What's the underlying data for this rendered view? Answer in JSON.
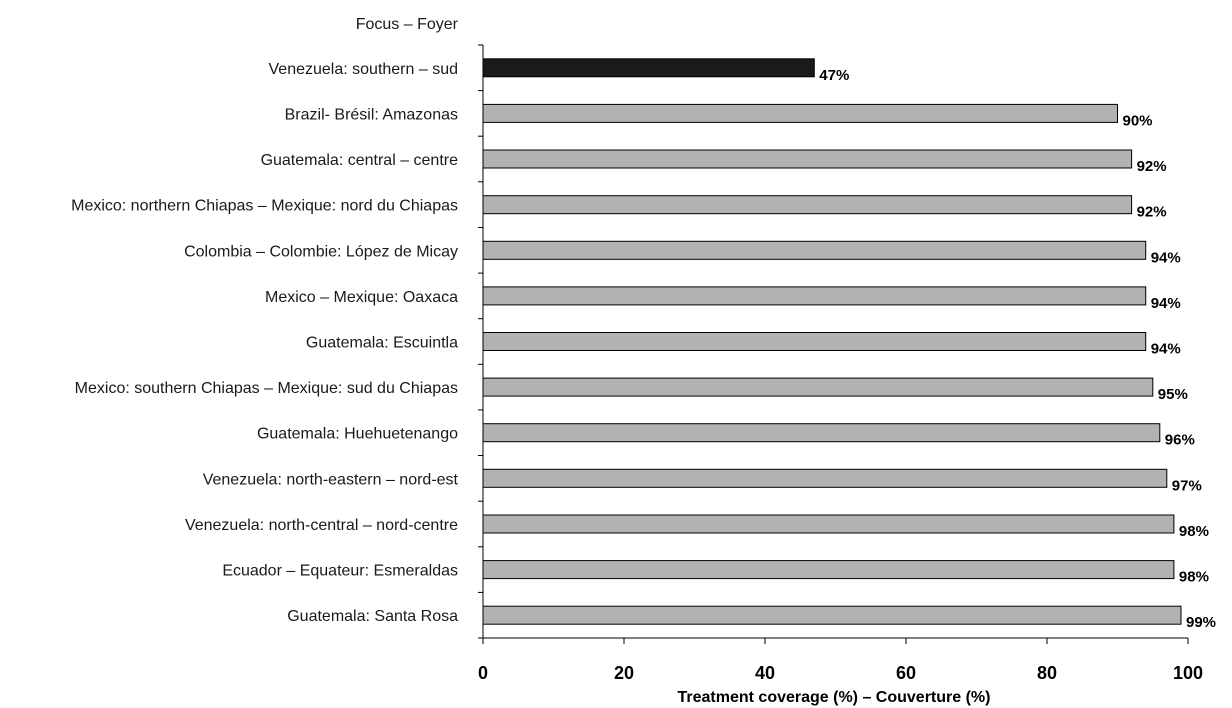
{
  "chart_data": {
    "type": "bar",
    "orientation": "horizontal",
    "category_header": "Focus – Foyer",
    "xlabel": "Treatment coverage (%) – Couverture (%)",
    "xlim": [
      0,
      100
    ],
    "xticks": [
      "0",
      "20",
      "40",
      "60",
      "80",
      "100"
    ],
    "categories": [
      "Venezuela: southern – sud",
      "Brazil- Brésil: Amazonas",
      "Guatemala: central – centre",
      "Mexico: northern Chiapas – Mexique: nord du Chiapas",
      "Colombia – Colombie: López de Micay",
      "Mexico – Mexique: Oaxaca",
      "Guatemala:  Escuintla",
      "Mexico: southern Chiapas – Mexique: sud du Chiapas",
      "Guatemala:  Huehuetenango",
      "Venezuela: north-eastern – nord-est",
      "Venezuela: north-central – nord-centre",
      "Ecuador – Equateur: Esmeraldas",
      "Guatemala: Santa Rosa"
    ],
    "values": [
      47,
      90,
      92,
      92,
      94,
      94,
      94,
      95,
      96,
      97,
      98,
      98,
      99
    ],
    "value_labels": [
      "47%",
      "90%",
      "92%",
      "92%",
      "94%",
      "94%",
      "94%",
      "95%",
      "96%",
      "97%",
      "98%",
      "98%",
      "99%"
    ],
    "colors": [
      "#1a1a1a",
      "#b2b2b2",
      "#b2b2b2",
      "#b2b2b2",
      "#b2b2b2",
      "#b2b2b2",
      "#b2b2b2",
      "#b2b2b2",
      "#b2b2b2",
      "#b2b2b2",
      "#b2b2b2",
      "#b2b2b2",
      "#b2b2b2"
    ],
    "grid": false,
    "legend": "none"
  }
}
